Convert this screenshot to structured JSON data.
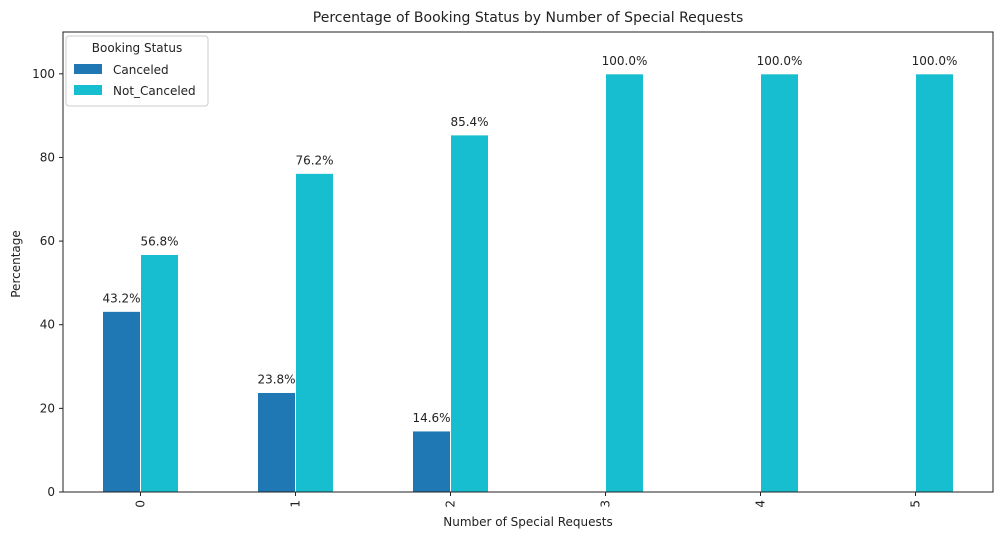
{
  "chart_data": {
    "type": "bar",
    "title": "Percentage of Booking Status by Number of Special Requests",
    "xlabel": "Number of Special Requests",
    "ylabel": "Percentage",
    "categories": [
      "0",
      "1",
      "2",
      "3",
      "4",
      "5"
    ],
    "series": [
      {
        "name": "Canceled",
        "color": "#1f77b4",
        "values": [
          43.2,
          23.8,
          14.6,
          0,
          0,
          0
        ],
        "labels": [
          "43.2%",
          "23.8%",
          "14.6%",
          "",
          "",
          ""
        ]
      },
      {
        "name": "Not_Canceled",
        "color": "#17becf",
        "values": [
          56.8,
          76.2,
          85.4,
          100.0,
          100.0,
          100.0
        ],
        "labels": [
          "56.8%",
          "76.2%",
          "85.4%",
          "100.0%",
          "100.0%",
          "100.0%"
        ]
      }
    ],
    "ylim": [
      0,
      110
    ],
    "yticks": [
      0,
      20,
      40,
      60,
      80,
      100
    ],
    "ytick_labels": [
      "0",
      "20",
      "40",
      "60",
      "80",
      "100"
    ],
    "legend": {
      "title": "Booking Status",
      "placement": "top-left"
    },
    "grid": false
  }
}
